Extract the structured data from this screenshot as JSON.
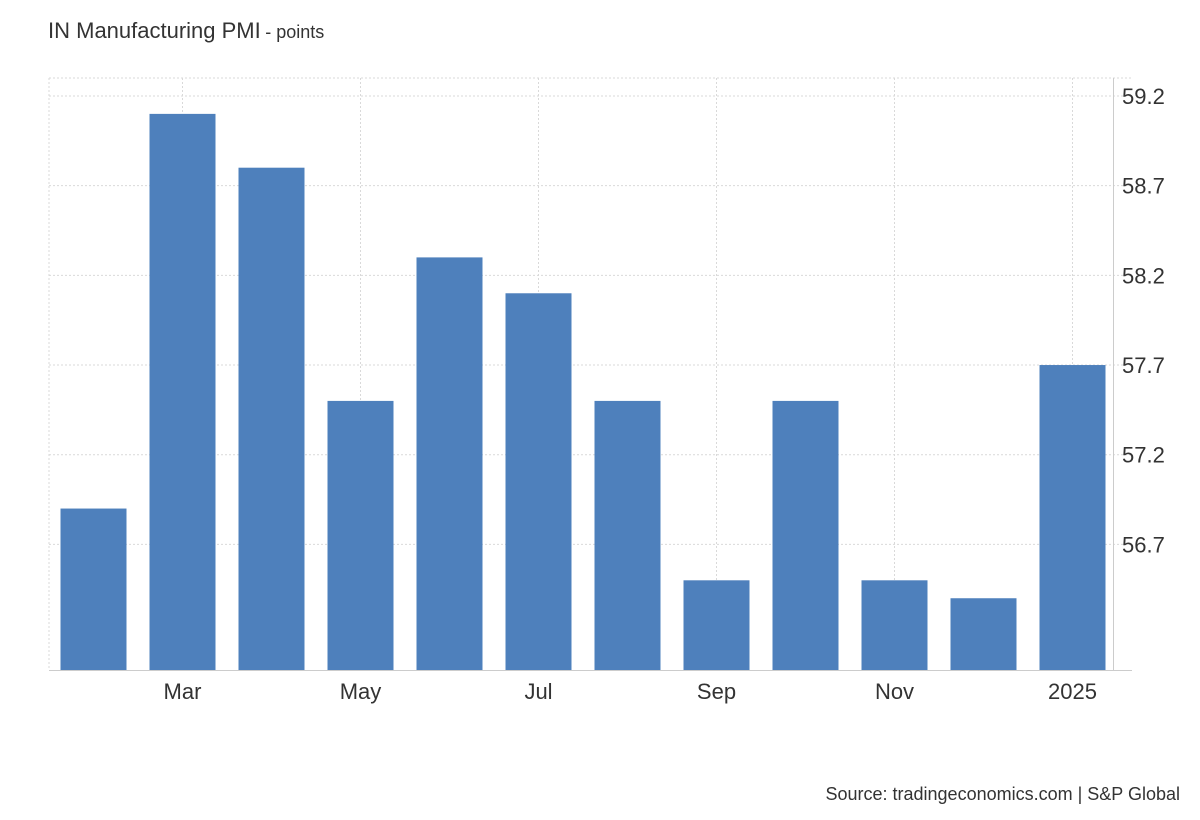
{
  "header": {
    "title": "IN Manufacturing PMI",
    "subtitle": "- points"
  },
  "source": "Source: tradingeconomics.com | S&P Global",
  "chart_data": {
    "type": "bar",
    "title": "IN Manufacturing PMI",
    "subtitle": "- points",
    "categories": [
      "Feb 2024",
      "Mar 2024",
      "Apr 2024",
      "May 2024",
      "Jun 2024",
      "Jul 2024",
      "Aug 2024",
      "Sep 2024",
      "Oct 2024",
      "Nov 2024",
      "Dec 2024",
      "Jan 2025"
    ],
    "values": [
      56.9,
      59.1,
      58.8,
      57.5,
      58.3,
      58.1,
      57.5,
      56.5,
      57.5,
      56.5,
      56.4,
      57.7
    ],
    "x_tick_labels": [
      {
        "category_index": 1,
        "label": "Mar"
      },
      {
        "category_index": 3,
        "label": "May"
      },
      {
        "category_index": 5,
        "label": "Jul"
      },
      {
        "category_index": 7,
        "label": "Sep"
      },
      {
        "category_index": 9,
        "label": "Nov"
      },
      {
        "category_index": 11,
        "label": "2025"
      }
    ],
    "y_ticks": [
      "56.7",
      "57.2",
      "57.7",
      "58.2",
      "58.7",
      "59.2"
    ],
    "ylim": [
      56.0,
      59.3
    ],
    "y_axis_side": "right",
    "grid": true,
    "bar_color": "#4e80bc",
    "grid_color": "#d9d9d9",
    "xlabel": "",
    "ylabel": ""
  }
}
